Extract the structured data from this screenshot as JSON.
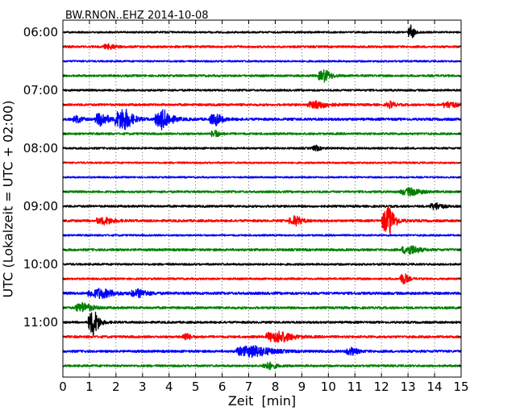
{
  "chart_data": {
    "type": "line",
    "subtype": "seismogram-dayplot",
    "title": "BW.RNON..EHZ 2014-10-08",
    "xlabel": "Zeit  [min]",
    "ylabel": "UTC (Lokalzeit = UTC + 02:00)",
    "xlim": [
      0,
      15
    ],
    "x_ticks": [
      "0",
      "1",
      "2",
      "3",
      "4",
      "5",
      "6",
      "7",
      "8",
      "9",
      "10",
      "11",
      "12",
      "13",
      "14",
      "15"
    ],
    "y_ticks": [
      "06:00",
      "07:00",
      "08:00",
      "09:00",
      "10:00",
      "11:00"
    ],
    "grid": "vertical dotted at each minute",
    "color_cycle": [
      "#000000",
      "#ff0000",
      "#0000ff",
      "#008000"
    ],
    "rows": [
      {
        "start": "06:00",
        "color": "#000000",
        "noise": 1.0,
        "events": [
          {
            "t": 13.1,
            "amp": 6,
            "dur": 0.15
          }
        ]
      },
      {
        "start": "06:15",
        "color": "#ff0000",
        "noise": 1.2,
        "events": [
          {
            "t": 1.7,
            "amp": 2,
            "dur": 0.3
          }
        ]
      },
      {
        "start": "06:30",
        "color": "#0000ff",
        "noise": 1.0,
        "events": []
      },
      {
        "start": "06:45",
        "color": "#008000",
        "noise": 1.2,
        "events": [
          {
            "t": 9.8,
            "amp": 5,
            "dur": 0.3
          }
        ]
      },
      {
        "start": "07:00",
        "color": "#000000",
        "noise": 1.1,
        "events": []
      },
      {
        "start": "07:15",
        "color": "#ff0000",
        "noise": 1.3,
        "events": [
          {
            "t": 9.5,
            "amp": 3,
            "dur": 0.5
          },
          {
            "t": 12.3,
            "amp": 2.5,
            "dur": 0.2
          },
          {
            "t": 14.5,
            "amp": 3,
            "dur": 0.3
          }
        ]
      },
      {
        "start": "07:30",
        "color": "#0000ff",
        "noise": 1.4,
        "events": [
          {
            "t": 0.5,
            "amp": 3,
            "dur": 0.2
          },
          {
            "t": 1.4,
            "amp": 6,
            "dur": 0.3
          },
          {
            "t": 2.2,
            "amp": 10,
            "dur": 0.4
          },
          {
            "t": 3.7,
            "amp": 8,
            "dur": 0.4
          },
          {
            "t": 5.7,
            "amp": 5,
            "dur": 0.3
          }
        ]
      },
      {
        "start": "07:45",
        "color": "#008000",
        "noise": 1.2,
        "events": [
          {
            "t": 5.7,
            "amp": 3,
            "dur": 0.2
          }
        ]
      },
      {
        "start": "08:00",
        "color": "#000000",
        "noise": 1.1,
        "events": [
          {
            "t": 9.5,
            "amp": 2,
            "dur": 0.2
          }
        ]
      },
      {
        "start": "08:15",
        "color": "#ff0000",
        "noise": 1.0,
        "events": []
      },
      {
        "start": "08:30",
        "color": "#0000ff",
        "noise": 0.9,
        "events": []
      },
      {
        "start": "08:45",
        "color": "#008000",
        "noise": 1.2,
        "events": [
          {
            "t": 13.0,
            "amp": 3,
            "dur": 0.5
          }
        ]
      },
      {
        "start": "09:00",
        "color": "#000000",
        "noise": 1.2,
        "events": [
          {
            "t": 14.0,
            "amp": 3,
            "dur": 0.3
          }
        ]
      },
      {
        "start": "09:15",
        "color": "#ff0000",
        "noise": 1.3,
        "events": [
          {
            "t": 1.5,
            "amp": 3,
            "dur": 0.4
          },
          {
            "t": 8.7,
            "amp": 4,
            "dur": 0.3
          },
          {
            "t": 12.2,
            "amp": 13,
            "dur": 0.3
          }
        ]
      },
      {
        "start": "09:30",
        "color": "#0000ff",
        "noise": 1.0,
        "events": []
      },
      {
        "start": "09:45",
        "color": "#008000",
        "noise": 1.3,
        "events": [
          {
            "t": 13.0,
            "amp": 4,
            "dur": 0.4
          }
        ]
      },
      {
        "start": "10:00",
        "color": "#000000",
        "noise": 1.1,
        "events": []
      },
      {
        "start": "10:15",
        "color": "#ff0000",
        "noise": 1.1,
        "events": [
          {
            "t": 12.8,
            "amp": 5,
            "dur": 0.2
          }
        ]
      },
      {
        "start": "10:30",
        "color": "#0000ff",
        "noise": 1.4,
        "events": [
          {
            "t": 1.3,
            "amp": 4,
            "dur": 0.6
          },
          {
            "t": 2.8,
            "amp": 3,
            "dur": 0.4
          }
        ]
      },
      {
        "start": "10:45",
        "color": "#008000",
        "noise": 1.3,
        "events": [
          {
            "t": 0.7,
            "amp": 4,
            "dur": 0.4
          }
        ]
      },
      {
        "start": "11:00",
        "color": "#000000",
        "noise": 1.2,
        "events": [
          {
            "t": 1.1,
            "amp": 12,
            "dur": 0.25
          }
        ]
      },
      {
        "start": "11:15",
        "color": "#ff0000",
        "noise": 1.3,
        "events": [
          {
            "t": 4.6,
            "amp": 3,
            "dur": 0.2
          },
          {
            "t": 8.0,
            "amp": 5,
            "dur": 0.6
          }
        ]
      },
      {
        "start": "11:30",
        "color": "#0000ff",
        "noise": 1.3,
        "events": [
          {
            "t": 7.0,
            "amp": 5,
            "dur": 0.8
          },
          {
            "t": 10.8,
            "amp": 3,
            "dur": 0.3
          }
        ]
      },
      {
        "start": "11:45",
        "color": "#008000",
        "noise": 1.2,
        "events": [
          {
            "t": 7.7,
            "amp": 3,
            "dur": 0.3
          }
        ]
      }
    ]
  }
}
